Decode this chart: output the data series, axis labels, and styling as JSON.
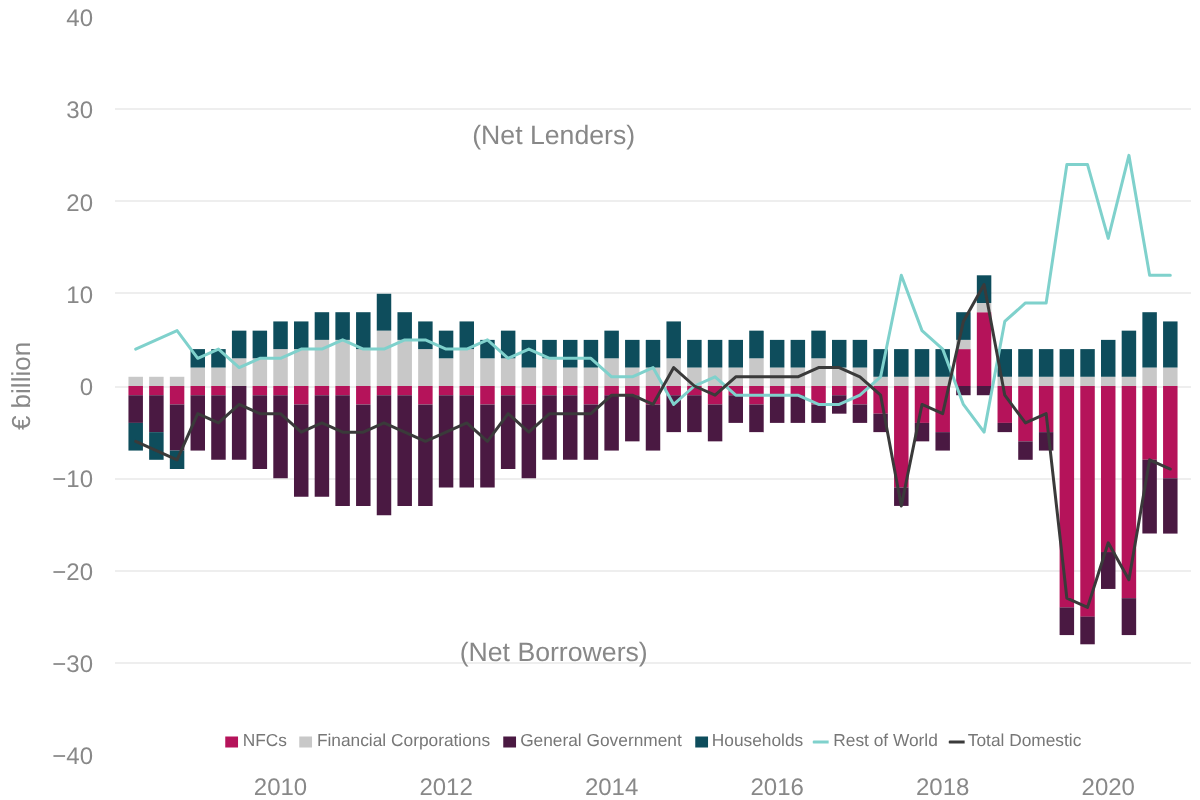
{
  "chart_data": {
    "type": "bar",
    "stacked": true,
    "ylabel": "€ billion",
    "x": [
      2008.25,
      2008.5,
      2008.75,
      2009,
      2009.25,
      2009.5,
      2009.75,
      2010,
      2010.25,
      2010.5,
      2010.75,
      2011,
      2011.25,
      2011.5,
      2011.75,
      2012,
      2012.25,
      2012.5,
      2012.75,
      2013,
      2013.25,
      2013.5,
      2013.75,
      2014,
      2014.25,
      2014.5,
      2014.75,
      2015,
      2015.25,
      2015.5,
      2015.75,
      2016,
      2016.25,
      2016.5,
      2016.75,
      2017,
      2017.25,
      2017.5,
      2017.75,
      2018,
      2018.25,
      2018.5,
      2018.75,
      2019,
      2019.25,
      2019.5,
      2019.75,
      2020,
      2020.25,
      2020.5,
      2020.75
    ],
    "series": [
      {
        "name": "NFCs",
        "color": "#b5135a",
        "values": [
          -1,
          -1,
          -2,
          -1,
          -1,
          0,
          -1,
          -1,
          -2,
          -1,
          -1,
          -2,
          -1,
          -1,
          -2,
          -1,
          -1,
          -2,
          -1,
          -2,
          -1,
          -1,
          -2,
          -1,
          -1,
          -2,
          -1,
          -1,
          -2,
          -1,
          -2,
          -1,
          -1,
          -2,
          -1,
          -2,
          -3,
          -11,
          -4,
          -5,
          4,
          8,
          -4,
          -6,
          -5,
          -24,
          -25,
          -18,
          -23,
          -8,
          -10
        ]
      },
      {
        "name": "Financial Corporations",
        "color": "#c8c8c8",
        "values": [
          1,
          1,
          1,
          2,
          2,
          3,
          3,
          4,
          4,
          5,
          5,
          4,
          6,
          5,
          4,
          3,
          4,
          3,
          3,
          2,
          3,
          2,
          2,
          3,
          2,
          2,
          3,
          2,
          2,
          2,
          3,
          2,
          2,
          3,
          2,
          2,
          1,
          1,
          1,
          1,
          1,
          1,
          1,
          1,
          1,
          1,
          1,
          1,
          1,
          2,
          2
        ]
      },
      {
        "name": "General Government",
        "color": "#4a1942",
        "values": [
          -3,
          -4,
          -5,
          -6,
          -7,
          -8,
          -8,
          -9,
          -10,
          -11,
          -12,
          -11,
          -13,
          -12,
          -11,
          -10,
          -10,
          -9,
          -8,
          -8,
          -7,
          -7,
          -6,
          -6,
          -5,
          -5,
          -4,
          -4,
          -4,
          -3,
          -3,
          -3,
          -3,
          -2,
          -2,
          -2,
          -2,
          -2,
          -2,
          -2,
          -1,
          -1,
          -1,
          -2,
          -2,
          -3,
          -3,
          -4,
          -4,
          -8,
          -6
        ]
      },
      {
        "name": "Households",
        "color": "#0e4d5c",
        "values": [
          -3,
          -3,
          -2,
          2,
          2,
          3,
          3,
          3,
          3,
          3,
          3,
          4,
          4,
          3,
          3,
          3,
          3,
          2,
          3,
          3,
          2,
          3,
          3,
          3,
          3,
          3,
          4,
          3,
          3,
          3,
          3,
          3,
          3,
          3,
          3,
          3,
          3,
          3,
          3,
          3,
          3,
          3,
          3,
          3,
          3,
          3,
          3,
          4,
          5,
          6,
          5
        ]
      },
      {
        "name": "Rest of World",
        "type": "line",
        "color": "#7fd1cc",
        "values": [
          4,
          5,
          6,
          3,
          4,
          2,
          3,
          3,
          4,
          4,
          5,
          4,
          4,
          5,
          5,
          4,
          4,
          5,
          3,
          4,
          3,
          3,
          3,
          1,
          1,
          2,
          -2,
          0,
          1,
          -1,
          -1,
          -1,
          -1,
          -2,
          -2,
          -1,
          1,
          12,
          6,
          4,
          -2,
          -5,
          7,
          9,
          9,
          24,
          24,
          16,
          25,
          12,
          12
        ]
      },
      {
        "name": "Total Domestic",
        "type": "line",
        "color": "#3a3a3a",
        "values": [
          -6,
          -7,
          -8,
          -3,
          -4,
          -2,
          -3,
          -3,
          -5,
          -4,
          -5,
          -5,
          -4,
          -5,
          -6,
          -5,
          -4,
          -6,
          -3,
          -5,
          -3,
          -3,
          -3,
          -1,
          -1,
          -2,
          2,
          0,
          -1,
          1,
          1,
          1,
          1,
          2,
          2,
          1,
          -1,
          -13,
          -2,
          -3,
          7,
          11,
          -1,
          -4,
          -3,
          -23,
          -24,
          -17,
          -21,
          -8,
          -9
        ]
      }
    ],
    "xlim": [
      2008,
      2021
    ],
    "xticks": [
      2010,
      2012,
      2014,
      2016,
      2018,
      2020
    ],
    "ylim": [
      -40,
      40
    ],
    "yticks": [
      -40,
      -30,
      -20,
      -10,
      0,
      10,
      20,
      30,
      40
    ],
    "grid": "y",
    "legend": "bottom",
    "annotations": [
      "(Net Lenders)",
      "(Net Borrowers)"
    ]
  }
}
